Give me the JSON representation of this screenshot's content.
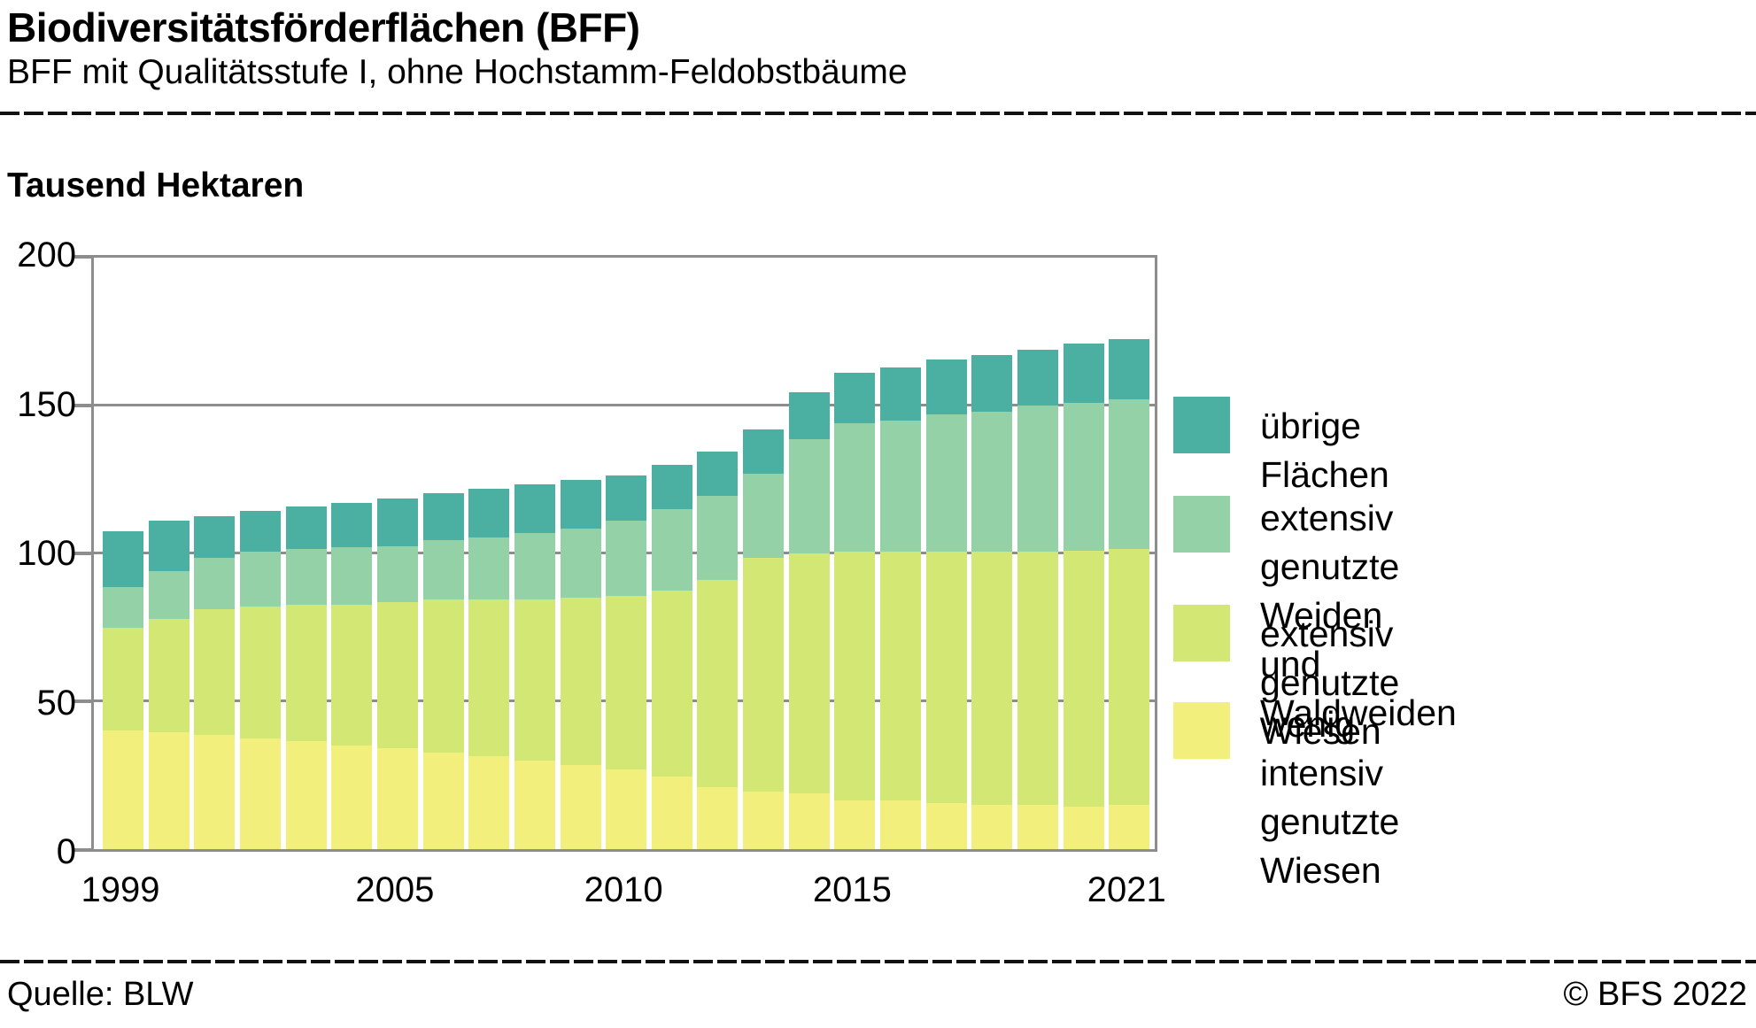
{
  "header": {
    "title": "Biodiversitätsförderflächen (BFF)",
    "subtitle": "BFF mit Qualitätsstufe I, ohne Hochstamm-Feldobstbäume"
  },
  "chart": {
    "axis_title": "Tausend Hektaren",
    "y_tick_labels": [
      "0",
      "50",
      "100",
      "150",
      "200"
    ],
    "y_tick_values": [
      0,
      50,
      100,
      150,
      200
    ],
    "x_tick_labels": [
      {
        "label": "1999",
        "year_index": 0
      },
      {
        "label": "2005",
        "year_index": 6
      },
      {
        "label": "2010",
        "year_index": 11
      },
      {
        "label": "2015",
        "year_index": 16
      },
      {
        "label": "2021",
        "year_index": 22
      }
    ]
  },
  "chart_data": {
    "type": "bar",
    "stacked": true,
    "title": "Biodiversitätsförderflächen (BFF)",
    "subtitle": "BFF mit Qualitätsstufe I, ohne Hochstamm-Feldobstbäume",
    "ylabel": "Tausend Hektaren",
    "ylim": [
      0,
      200
    ],
    "grid": true,
    "legend_position": "right",
    "categories": [
      1999,
      2000,
      2001,
      2002,
      2003,
      2004,
      2005,
      2006,
      2007,
      2008,
      2009,
      2010,
      2011,
      2012,
      2013,
      2014,
      2015,
      2016,
      2017,
      2018,
      2019,
      2020,
      2021
    ],
    "series": [
      {
        "name": "wenig intensiv genutzte Wiesen",
        "color": "#f3ef7d",
        "values": [
          40,
          39.5,
          38.5,
          37.5,
          36.5,
          35,
          34,
          32.5,
          31.5,
          30,
          28.5,
          27,
          24.5,
          21,
          19.5,
          19,
          16.5,
          16.5,
          15.5,
          15,
          15,
          14.5,
          15
        ]
      },
      {
        "name": "extensiv genutzte Wiesen",
        "color": "#d3e874",
        "values": [
          35,
          38.5,
          42.5,
          44.5,
          46,
          47.5,
          49.5,
          52,
          53,
          54.5,
          56.5,
          58.5,
          63,
          70,
          79,
          81,
          84,
          84,
          85,
          85.5,
          85.5,
          86.5,
          86.5
        ]
      },
      {
        "name": "extensiv genutzte Weiden und Waldweiden",
        "color": "#94d1a6",
        "values": [
          13.5,
          16,
          17.5,
          18.5,
          19,
          19.5,
          19,
          20,
          21,
          22.5,
          23.5,
          25.5,
          27.5,
          28.5,
          28.5,
          38.5,
          43.5,
          44.5,
          46.5,
          47.5,
          49.5,
          50,
          50.5
        ]
      },
      {
        "name": "übrige Flächen",
        "color": "#4bafa2",
        "values": [
          19,
          17,
          14,
          14,
          14.5,
          15,
          16,
          16,
          16.5,
          16.5,
          16.5,
          15.5,
          15,
          15,
          15,
          16,
          17,
          18,
          18.5,
          19,
          19,
          20,
          20.5
        ]
      }
    ]
  },
  "legend": {
    "items": [
      {
        "label": "übrige Flächen",
        "lines": [
          "übrige Flächen"
        ],
        "color": "#4bafa2"
      },
      {
        "label": "extensiv genutzte Weiden und Waldweiden",
        "lines": [
          "extensiv genutzte Weiden",
          "und Waldweiden"
        ],
        "color": "#94d1a6"
      },
      {
        "label": "extensiv genutzte Wiesen",
        "lines": [
          "extensiv genutzte Wiesen"
        ],
        "color": "#d3e874"
      },
      {
        "label": "wenig intensiv genutzte Wiesen",
        "lines": [
          "wenig intensiv genutzte",
          "Wiesen"
        ],
        "color": "#f3ef7d"
      }
    ]
  },
  "footer": {
    "source": "Quelle: BLW",
    "copyright": "© BFS 2022"
  }
}
